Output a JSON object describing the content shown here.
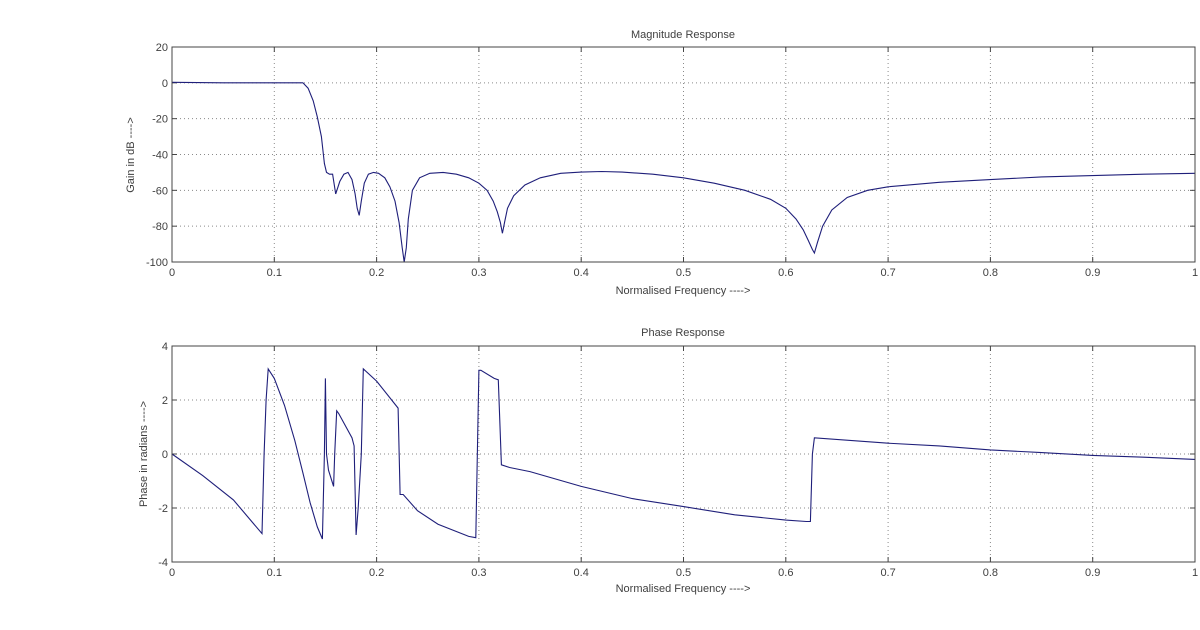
{
  "figure": {
    "background": "#ffffff",
    "line_color": "#1f1f7a",
    "grid_color": "#8a8a8a",
    "axis_color": "#444444"
  },
  "chart_data": [
    {
      "type": "line",
      "title": "Magnitude Response",
      "xlabel": "Normalised Frequency ---->",
      "ylabel": "Gain in dB ---->",
      "xlim": [
        0,
        1
      ],
      "ylim": [
        -100,
        20
      ],
      "xticks": [
        0,
        0.1,
        0.2,
        0.3,
        0.4,
        0.5,
        0.6,
        0.7,
        0.8,
        0.9,
        1
      ],
      "xtick_labels": [
        "0",
        "0.1",
        "0.2",
        "0.3",
        "0.4",
        "0.5",
        "0.6",
        "0.7",
        "0.8",
        "0.9",
        "1"
      ],
      "yticks": [
        20,
        0,
        -20,
        -40,
        -60,
        -80,
        -100
      ],
      "ytick_labels": [
        "20",
        "0",
        "-20",
        "-40",
        "-60",
        "-80",
        "-100"
      ],
      "grid": true,
      "series": [
        {
          "name": "Magnitude",
          "x": [
            0,
            0.05,
            0.1,
            0.128,
            0.133,
            0.138,
            0.142,
            0.146,
            0.149,
            0.151,
            0.154,
            0.157,
            0.16,
            0.164,
            0.168,
            0.172,
            0.176,
            0.179,
            0.181,
            0.183,
            0.185,
            0.188,
            0.192,
            0.197,
            0.202,
            0.208,
            0.213,
            0.218,
            0.222,
            0.225,
            0.227,
            0.229,
            0.231,
            0.235,
            0.242,
            0.252,
            0.265,
            0.278,
            0.29,
            0.3,
            0.308,
            0.314,
            0.318,
            0.321,
            0.323,
            0.325,
            0.328,
            0.334,
            0.345,
            0.36,
            0.38,
            0.4,
            0.42,
            0.44,
            0.47,
            0.5,
            0.53,
            0.56,
            0.585,
            0.6,
            0.61,
            0.617,
            0.622,
            0.626,
            0.628,
            0.631,
            0.636,
            0.645,
            0.66,
            0.68,
            0.7,
            0.75,
            0.8,
            0.85,
            0.9,
            0.95,
            1.0
          ],
          "y": [
            0.3,
            0,
            0,
            0,
            -3,
            -10,
            -19,
            -30,
            -45,
            -50,
            -51,
            -51,
            -62,
            -55,
            -51,
            -50,
            -54,
            -62,
            -70,
            -74,
            -66,
            -56,
            -51,
            -50,
            -50.5,
            -53,
            -58,
            -66,
            -78,
            -92,
            -100,
            -92,
            -76,
            -60,
            -53,
            -50.5,
            -50,
            -51,
            -53,
            -56,
            -60,
            -66,
            -72,
            -78,
            -84,
            -78,
            -70,
            -63,
            -57,
            -53,
            -50.5,
            -49.8,
            -49.5,
            -49.8,
            -51,
            -53,
            -56,
            -60,
            -65,
            -70,
            -76,
            -82,
            -88,
            -93,
            -95,
            -89,
            -80,
            -71,
            -64,
            -60,
            -58,
            -55.5,
            -54,
            -52.5,
            -51.8,
            -51,
            -50.5
          ]
        }
      ]
    },
    {
      "type": "line",
      "title": "Phase Response",
      "xlabel": "Normalised Frequency ---->",
      "ylabel": "Phase in radians ---->",
      "xlim": [
        0,
        1
      ],
      "ylim": [
        -4,
        4
      ],
      "xticks": [
        0,
        0.1,
        0.2,
        0.3,
        0.4,
        0.5,
        0.6,
        0.7,
        0.8,
        0.9,
        1
      ],
      "xtick_labels": [
        "0",
        "0.1",
        "0.2",
        "0.3",
        "0.4",
        "0.5",
        "0.6",
        "0.7",
        "0.8",
        "0.9",
        "1"
      ],
      "yticks": [
        4,
        2,
        0,
        -2,
        -4
      ],
      "ytick_labels": [
        "4",
        "2",
        "0",
        "-2",
        "-4"
      ],
      "grid": true,
      "series": [
        {
          "name": "Phase",
          "x": [
            0,
            0.03,
            0.06,
            0.088,
            0.09,
            0.092,
            0.094,
            0.1,
            0.11,
            0.12,
            0.128,
            0.135,
            0.142,
            0.147,
            0.149,
            0.15,
            0.151,
            0.153,
            0.158,
            0.159,
            0.161,
            0.163,
            0.176,
            0.178,
            0.18,
            0.182,
            0.185,
            0.187,
            0.2,
            0.221,
            0.223,
            0.226,
            0.24,
            0.26,
            0.29,
            0.297,
            0.3,
            0.302,
            0.315,
            0.319,
            0.322,
            0.33,
            0.35,
            0.4,
            0.45,
            0.5,
            0.55,
            0.6,
            0.62,
            0.624,
            0.626,
            0.628,
            0.7,
            0.75,
            0.8,
            0.85,
            0.9,
            0.95,
            1.0
          ],
          "y": [
            0,
            -0.8,
            -1.7,
            -2.95,
            0,
            2.0,
            3.15,
            2.8,
            1.8,
            0.5,
            -0.7,
            -1.8,
            -2.7,
            -3.15,
            0,
            2.8,
            0,
            -0.6,
            -1.2,
            0,
            1.6,
            1.5,
            0.6,
            0.3,
            -3.0,
            -2.0,
            0,
            3.15,
            2.7,
            1.7,
            -1.5,
            -1.5,
            -2.1,
            -2.6,
            -3.05,
            -3.1,
            3.1,
            3.1,
            2.8,
            2.75,
            -0.4,
            -0.5,
            -0.65,
            -1.2,
            -1.65,
            -1.95,
            -2.25,
            -2.45,
            -2.5,
            -2.5,
            0,
            0.6,
            0.4,
            0.3,
            0.15,
            0.05,
            -0.05,
            -0.12,
            -0.2
          ]
        }
      ]
    }
  ]
}
